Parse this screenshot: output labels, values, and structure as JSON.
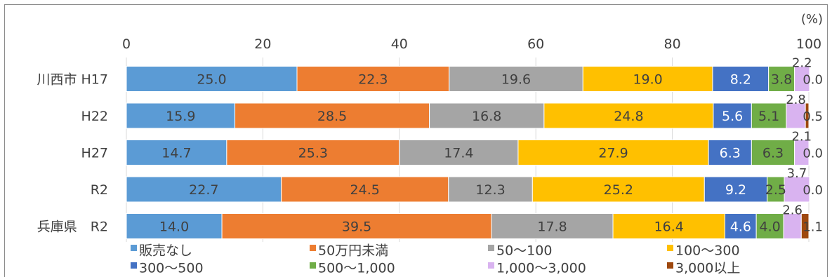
{
  "chart_data": {
    "type": "bar",
    "orientation": "horizontal",
    "stacked": true,
    "unit_label": "(%)",
    "xlim": [
      0,
      100
    ],
    "x_ticks": [
      "0",
      "20",
      "40",
      "60",
      "80",
      "100"
    ],
    "grid": true,
    "legend_position": "bottom",
    "categories": [
      "川西市 H17",
      "H22",
      "H27",
      "R2",
      "兵庫県　R2"
    ],
    "series": [
      {
        "name": "販売なし",
        "color": "#5B9BD5",
        "values": [
          25.0,
          15.9,
          14.7,
          22.7,
          14.0
        ]
      },
      {
        "name": "50万円未満",
        "color": "#ED7D31",
        "values": [
          22.3,
          28.5,
          25.3,
          24.5,
          39.5
        ]
      },
      {
        "name": "50～100",
        "color": "#A5A5A5",
        "values": [
          19.6,
          16.8,
          17.4,
          12.3,
          17.8
        ]
      },
      {
        "name": "100～300",
        "color": "#FFC000",
        "values": [
          19.0,
          24.8,
          27.9,
          25.2,
          16.4
        ]
      },
      {
        "name": "300～500",
        "color": "#4472C4",
        "values": [
          8.2,
          5.6,
          6.3,
          9.2,
          4.6
        ]
      },
      {
        "name": "500～1,000",
        "color": "#70AD47",
        "values": [
          3.8,
          5.1,
          6.3,
          2.5,
          4.0
        ]
      },
      {
        "name": "1,000～3,000",
        "color": "#D9B3F0",
        "values": [
          2.2,
          2.8,
          2.1,
          3.7,
          2.6
        ]
      },
      {
        "name": "3,000以上",
        "color": "#9E480E",
        "values": [
          0.0,
          0.5,
          0.0,
          0.0,
          1.1
        ]
      }
    ]
  }
}
